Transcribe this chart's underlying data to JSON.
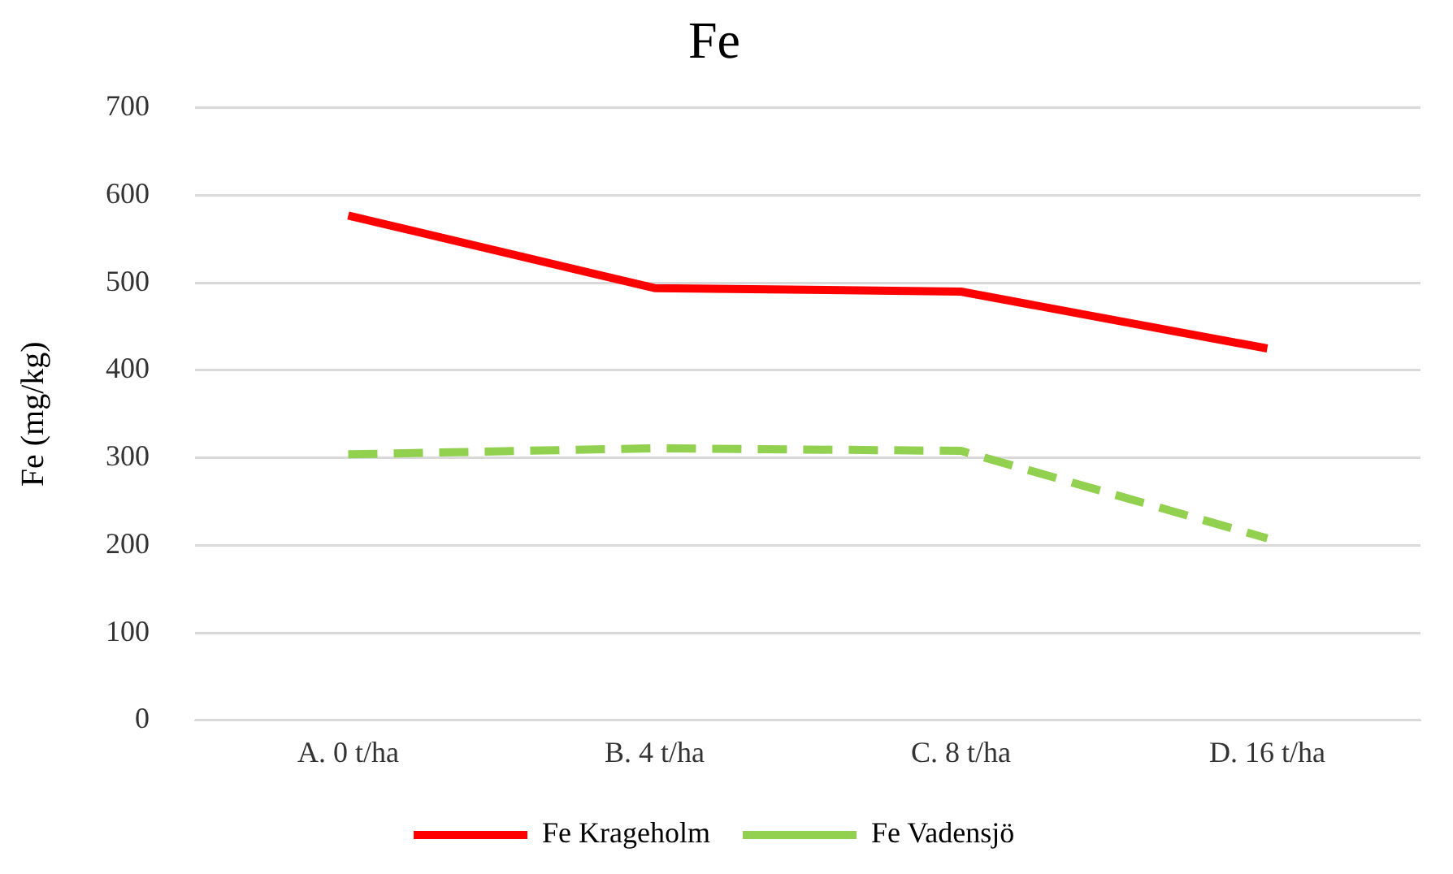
{
  "chart_data": {
    "type": "line",
    "title": "Fe",
    "ylabel": "Fe (mg/kg)",
    "categories": [
      "A. 0 t/ha",
      "B. 4 t/ha",
      "C. 8 t/ha",
      "D. 16 t/ha"
    ],
    "series": [
      {
        "name": "Fe Krageholm",
        "color": "#ff0000",
        "values": [
          577,
          494,
          490,
          425
        ],
        "line_style": "solid"
      },
      {
        "name": "Fe Vadensjö",
        "color": "#92d050",
        "values": [
          304,
          311,
          308,
          208
        ],
        "line_style": "dashed"
      }
    ],
    "ylim": [
      0,
      700
    ],
    "yticks": [
      0,
      100,
      200,
      300,
      400,
      500,
      600,
      700
    ],
    "grid": "y",
    "legend": "bottom",
    "marker": "none"
  }
}
